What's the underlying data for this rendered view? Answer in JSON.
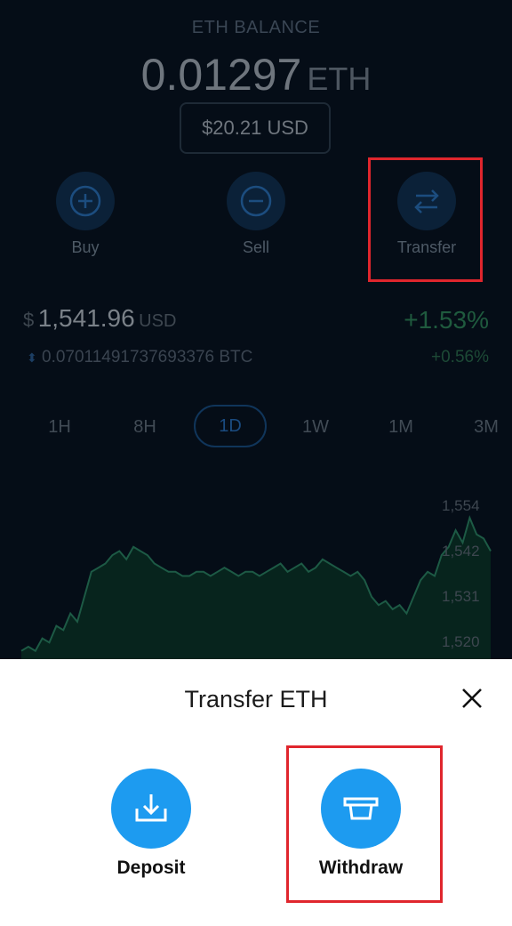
{
  "balance": {
    "label": "ETH BALANCE",
    "amount": "0.01297",
    "unit": "ETH",
    "usd": "$20.21 USD"
  },
  "actions": [
    {
      "label": "Buy",
      "icon": "plus-circle-icon"
    },
    {
      "label": "Sell",
      "icon": "minus-circle-icon"
    },
    {
      "label": "Transfer",
      "icon": "transfer-arrows-icon"
    }
  ],
  "price": {
    "currency_symbol": "$",
    "value": "1,541.96",
    "unit": "USD",
    "change_pct": "+1.53%",
    "btc_icon": "up-down-arrows-icon",
    "btc_value": "0.07011491737693376 BTC",
    "btc_change_pct": "+0.56%"
  },
  "timeframes": [
    "1H",
    "8H",
    "1D",
    "1W",
    "1M",
    "3M"
  ],
  "selected_timeframe": "1D",
  "chart_data": {
    "type": "area",
    "y_ticks": [
      "1,554",
      "1,542",
      "1,531",
      "1,520"
    ],
    "ylim": [
      1515,
      1558
    ],
    "values": [
      1517,
      1518,
      1517,
      1520,
      1519,
      1523,
      1522,
      1526,
      1524,
      1530,
      1536,
      1537,
      1538,
      1540,
      1541,
      1539,
      1542,
      1541,
      1540,
      1538,
      1537,
      1536,
      1536,
      1535,
      1535,
      1536,
      1536,
      1535,
      1536,
      1537,
      1536,
      1535,
      1536,
      1536,
      1535,
      1536,
      1537,
      1538,
      1536,
      1537,
      1538,
      1536,
      1537,
      1539,
      1538,
      1537,
      1536,
      1535,
      1536,
      1534,
      1530,
      1528,
      1529,
      1527,
      1528,
      1526,
      1530,
      1534,
      1536,
      1535,
      1540,
      1542,
      1546,
      1543,
      1549,
      1545,
      1544,
      1541
    ]
  },
  "colors": {
    "accent": "#1d9bf0",
    "highlight": "#e0262d",
    "positive": "#1f5a3e",
    "background": "#050d17"
  },
  "sheet": {
    "title": "Transfer ETH",
    "close_icon": "close-icon",
    "options": [
      {
        "label": "Deposit",
        "icon": "download-tray-icon"
      },
      {
        "label": "Withdraw",
        "icon": "atm-withdraw-icon"
      }
    ]
  }
}
